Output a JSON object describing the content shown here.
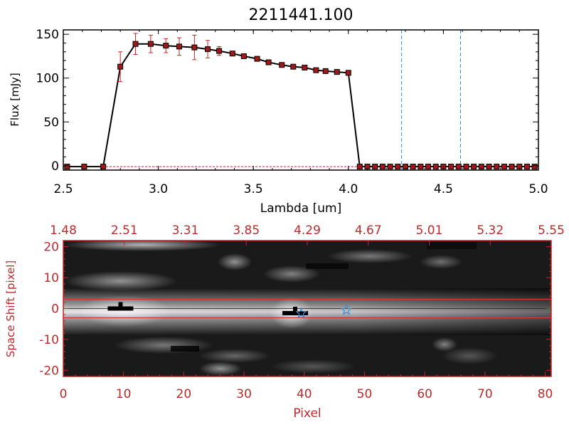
{
  "chart_data": [
    {
      "type": "line",
      "title": "2211441.100",
      "xlabel": "Lambda [um]",
      "ylabel": "Flux [mJy]",
      "xlim": [
        2.5,
        5.0
      ],
      "ylim": [
        -5,
        155
      ],
      "xticks": [
        "2.5",
        "3.0",
        "3.5",
        "4.0",
        "4.5",
        "5.0"
      ],
      "yticks": [
        "0",
        "50",
        "100",
        "150"
      ],
      "grid": false,
      "series": [
        {
          "x": [
            2.52,
            2.61,
            2.71,
            2.8,
            2.88,
            2.96,
            3.04,
            3.11,
            3.19,
            3.26,
            3.32,
            3.39,
            3.45,
            3.52,
            3.58,
            3.65,
            3.71,
            3.77,
            3.83,
            3.88,
            3.94,
            4.0,
            4.06,
            4.1,
            4.14,
            4.18,
            4.22,
            4.26,
            4.3,
            4.34,
            4.38,
            4.42,
            4.46,
            4.5,
            4.54,
            4.58,
            4.62,
            4.66,
            4.7,
            4.74,
            4.78,
            4.82,
            4.86,
            4.9,
            4.94,
            4.98
          ],
          "y": [
            -1,
            -1,
            -1,
            113,
            139,
            139,
            137,
            136,
            135,
            133,
            131,
            128,
            125,
            122,
            118,
            115,
            113,
            112,
            109,
            108,
            107,
            106,
            -1,
            -1,
            -1,
            -1,
            -1,
            -1,
            -1,
            -1,
            -1,
            -1,
            -1,
            -1,
            -1,
            -1,
            -1,
            -1,
            -1,
            -1,
            -1,
            -1,
            -1,
            -1,
            -1,
            -1
          ],
          "err": [
            0,
            0,
            0,
            17,
            12,
            10,
            8,
            10,
            14,
            10,
            5,
            0,
            0,
            0,
            0,
            0,
            0,
            0,
            0,
            0,
            0,
            0,
            0,
            0,
            0,
            0,
            0,
            0,
            0,
            0,
            0,
            0,
            0,
            0,
            0,
            0,
            0,
            0,
            0,
            0,
            0,
            0,
            0,
            0,
            0,
            0
          ]
        }
      ],
      "vlines": [
        4.28,
        4.59
      ],
      "colors": {
        "line": "#000000",
        "marker": "#a01818",
        "error": "#d02020",
        "vline": "#2a8fd0",
        "baseline": "#d02020"
      }
    },
    {
      "type": "heatmap",
      "xlabel": "Pixel",
      "ylabel": "Space Shift [pixel]",
      "xlim": [
        0,
        81
      ],
      "ylim": [
        -22,
        22
      ],
      "xticks": [
        "0",
        "10",
        "20",
        "30",
        "40",
        "50",
        "60",
        "70",
        "80"
      ],
      "yticks": [
        "-20",
        "-10",
        "0",
        "10",
        "20"
      ],
      "top_axis_ticks": [
        "1.48",
        "2.51",
        "3.31",
        "3.85",
        "4.29",
        "4.67",
        "5.01",
        "5.32",
        "5.55"
      ],
      "aperture_y": [
        -3,
        3
      ],
      "trace_y": 0,
      "markers": [
        {
          "shape": "cross",
          "x": 9.5,
          "y": 0
        },
        {
          "shape": "cross",
          "x": 38.5,
          "y": -1.5
        },
        {
          "shape": "star",
          "x": 39.5,
          "y": -1.5
        },
        {
          "shape": "star",
          "x": 47.0,
          "y": -0.5
        }
      ],
      "colors": {
        "axis": "#c0282a",
        "aperture": "#e03030",
        "star": "#3a8ad8"
      }
    }
  ]
}
